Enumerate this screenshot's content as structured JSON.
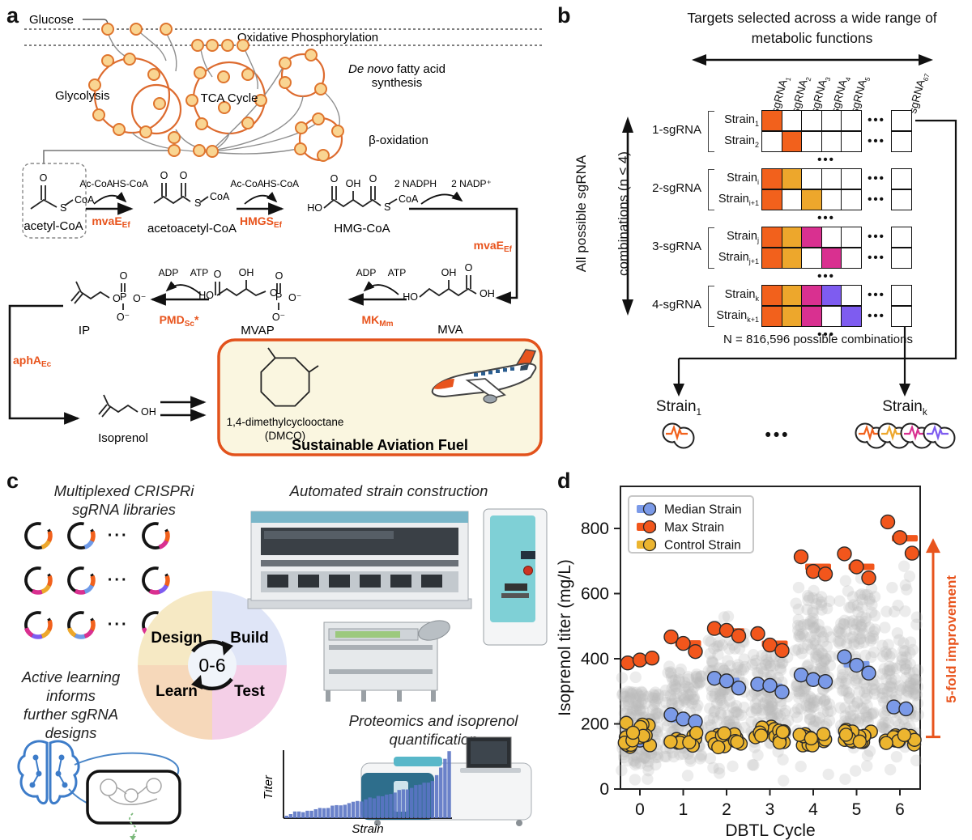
{
  "figure": {
    "panel_letters": {
      "a": "a",
      "b": "b",
      "c": "c",
      "d": "d"
    }
  },
  "colors": {
    "orange": "#f2611c",
    "gold": "#eda72c",
    "magenta": "#d93090",
    "purple": "#7e5cf0",
    "blue": "#6f9ae8",
    "median_blue": "#7b9ae8",
    "max_orange": "#f2561c",
    "control_gold": "#ecb52f",
    "grey_point": "#bcbcbc",
    "accent": "#e8541d"
  },
  "panel_a": {
    "network": {
      "glucose": "Glucose",
      "oxphos": "Oxidative Phosphorylation",
      "glycolysis": "Glycolysis",
      "tca": "TCA Cycle",
      "fatty1": "De novo",
      "fatty1b": "fatty acid",
      "fatty2": "synthesis",
      "beta": "β-oxidation"
    },
    "metabolites": {
      "acetyl": "acetyl-CoA",
      "acetoacetyl": "acetoacetyl-CoA",
      "hmg": "HMG-CoA",
      "mva": "MVA",
      "mvap": "MVAP",
      "ip": "IP",
      "isoprenol": "Isoprenol"
    },
    "enzymes": {
      "mvae1": {
        "base": "mvaE",
        "sub": "Ef"
      },
      "hmgs": {
        "base": "HMGS",
        "sub": "Ef"
      },
      "mvae2": {
        "base": "mvaE",
        "sub": "Ef"
      },
      "mk": {
        "base": "MK",
        "sub": "Mm"
      },
      "pmd": {
        "base": "PMD",
        "sub": "Sc",
        "suffix": "*"
      },
      "apha": {
        "base": "aphA",
        "sub": "Ec"
      }
    },
    "cofactors": {
      "accoa": "Ac-CoA",
      "hscoa": "HS-CoA",
      "adp": "ADP",
      "atp": "ATP",
      "nadph": "2 NADPH",
      "nadp": "2 NADP⁺"
    },
    "atoms": {
      "o": "O",
      "oh": "OH",
      "ho": "HO",
      "s": "S",
      "coa": "CoA",
      "p": "P",
      "ominus": "O⁻"
    },
    "saf": {
      "compound": "1,4-dimethylcyclooctane",
      "abbr": "(DMCO)",
      "title": "Sustainable Aviation Fuel"
    }
  },
  "panel_b": {
    "title1": "Targets selected across a wide range of",
    "title2": "metabolic functions",
    "col_headers": [
      {
        "base": "sgRNA",
        "sub": "1"
      },
      {
        "base": "sgRNA",
        "sub": "2"
      },
      {
        "base": "sgRNA",
        "sub": "3"
      },
      {
        "base": "sgRNA",
        "sub": "4"
      },
      {
        "base": "sgRNA",
        "sub": "5"
      },
      {
        "base": "sgRNA",
        "sub": "67"
      }
    ],
    "groups": [
      {
        "label": "1-sgRNA",
        "rows": [
          {
            "strain": {
              "base": "Strain",
              "sub": "1"
            },
            "cells": [
              "orange",
              "",
              "",
              "",
              ""
            ],
            "last": ""
          },
          {
            "strain": {
              "base": "Strain",
              "sub": "2"
            },
            "cells": [
              "",
              "orange",
              "",
              "",
              ""
            ],
            "last": ""
          }
        ]
      },
      {
        "label": "2-sgRNA",
        "rows": [
          {
            "strain": {
              "base": "Strain",
              "sub": "i"
            },
            "cells": [
              "orange",
              "gold",
              "",
              "",
              ""
            ],
            "last": ""
          },
          {
            "strain": {
              "base": "Strain",
              "sub": "i+1"
            },
            "cells": [
              "orange",
              "",
              "gold",
              "",
              ""
            ],
            "last": ""
          }
        ]
      },
      {
        "label": "3-sgRNA",
        "rows": [
          {
            "strain": {
              "base": "Strain",
              "sub": "j"
            },
            "cells": [
              "orange",
              "gold",
              "magenta",
              "",
              ""
            ],
            "last": ""
          },
          {
            "strain": {
              "base": "Strain",
              "sub": "j+1"
            },
            "cells": [
              "orange",
              "gold",
              "",
              "magenta",
              ""
            ],
            "last": ""
          }
        ]
      },
      {
        "label": "4-sgRNA",
        "rows": [
          {
            "strain": {
              "base": "Strain",
              "sub": "k"
            },
            "cells": [
              "orange",
              "gold",
              "magenta",
              "purple",
              ""
            ],
            "last": ""
          },
          {
            "strain": {
              "base": "Strain",
              "sub": "k+1"
            },
            "cells": [
              "orange",
              "gold",
              "magenta",
              "",
              "purple"
            ],
            "last": ""
          }
        ]
      }
    ],
    "dots": "•••",
    "left1": "All possible sgRNA",
    "left2": "combinations (n ≤ 4)",
    "note": "N = 816,596 possible combinations",
    "strain1": {
      "base": "Strain",
      "sub": "1"
    },
    "straink": {
      "base": "Strain",
      "sub": "k"
    },
    "strain1_colors": [
      "orange"
    ],
    "straink_colors": [
      "orange",
      "gold",
      "magenta",
      "purple"
    ]
  },
  "panel_c": {
    "lib1": "Multiplexed CRISPRi",
    "lib2": "sgRNA libraries",
    "auto": "Automated strain construction",
    "prot1": "Proteomics and isoprenol",
    "prot2": "quantification",
    "learn1": "Active learning",
    "learn2": "informs",
    "learn3": "further sgRNA",
    "learn4": "designs",
    "dbtl": {
      "design": "Design",
      "build": "Build",
      "test": "Test",
      "learn": "Learn",
      "center": "0-6"
    },
    "mini": {
      "ylabel": "Titer",
      "xlabel": "Strain",
      "bars": 40
    },
    "plasmid_rows": [
      [
        [
          "orange",
          "gold"
        ],
        [
          "orange",
          "blue"
        ],
        [
          "orange",
          "magenta"
        ]
      ],
      [
        [
          "orange",
          "gold",
          "magenta"
        ],
        [
          "orange",
          "blue",
          "magenta"
        ],
        [
          "orange",
          "purple",
          "magenta"
        ]
      ],
      [
        [
          "orange",
          "gold",
          "purple",
          "magenta"
        ],
        [
          "orange",
          "magenta",
          "blue",
          "gold"
        ],
        [
          "orange",
          "gold",
          "purple",
          "magenta"
        ]
      ]
    ],
    "pdots": "···"
  },
  "chart_data": {
    "type": "scatter",
    "title": "",
    "xlabel": "DBTL Cycle",
    "ylabel": "Isoprenol titer (mg/L)",
    "x_ticks": [
      "0",
      "1",
      "2",
      "3",
      "4",
      "5",
      "6"
    ],
    "y_ticks": [
      0,
      200,
      400,
      600,
      800
    ],
    "ylim": [
      0,
      915
    ],
    "grid": false,
    "legend_position": "top-left",
    "legend": [
      {
        "label": "Median Strain",
        "color_key": "median_blue"
      },
      {
        "label": "Max Strain",
        "color_key": "max_orange"
      },
      {
        "label": "Control Strain",
        "color_key": "control_gold"
      }
    ],
    "annotation": "5-fold improvement",
    "annotation_span": [
      160,
      760
    ],
    "cycles": [
      {
        "label": "0",
        "max_points": [
          387,
          396,
          402
        ],
        "max_bar": 394,
        "median_points": [
          150
        ],
        "median_bar": 146,
        "control": {
          "count": 18,
          "min": 125,
          "max": 205
        },
        "grey": {
          "count": 160,
          "min": 5,
          "max": 355,
          "dense_min": 70,
          "dense_max": 300
        }
      },
      {
        "label": "1",
        "max_points": [
          467,
          447,
          422
        ],
        "max_bar": 447,
        "median_points": [
          228,
          215,
          207
        ],
        "median_bar": 214,
        "control": {
          "count": 12,
          "min": 130,
          "max": 175
        },
        "grey": {
          "count": 120,
          "min": 20,
          "max": 405,
          "dense_min": 90,
          "dense_max": 360
        }
      },
      {
        "label": "2",
        "max_points": [
          493,
          487,
          470
        ],
        "max_bar": 484,
        "median_points": [
          340,
          332,
          310
        ],
        "median_bar": 332,
        "control": {
          "count": 13,
          "min": 120,
          "max": 178
        },
        "grey": {
          "count": 130,
          "min": 15,
          "max": 535,
          "dense_min": 140,
          "dense_max": 460
        }
      },
      {
        "label": "3",
        "max_points": [
          477,
          442,
          425
        ],
        "max_bar": 446,
        "median_points": [
          322,
          318,
          298
        ],
        "median_bar": 314,
        "control": {
          "count": 14,
          "min": 135,
          "max": 192
        },
        "grey": {
          "count": 120,
          "min": 25,
          "max": 460,
          "dense_min": 140,
          "dense_max": 410
        }
      },
      {
        "label": "4",
        "max_points": [
          713,
          668,
          660
        ],
        "max_bar": 682,
        "median_points": [
          350,
          336,
          330
        ],
        "median_bar": 340,
        "control": {
          "count": 13,
          "min": 132,
          "max": 172
        },
        "grey": {
          "count": 150,
          "min": 10,
          "max": 660,
          "dense_min": 180,
          "dense_max": 610
        }
      },
      {
        "label": "5",
        "max_points": [
          722,
          682,
          648
        ],
        "max_bar": 682,
        "median_points": [
          406,
          380,
          356
        ],
        "median_bar": 383,
        "control": {
          "count": 15,
          "min": 142,
          "max": 182
        },
        "grey": {
          "count": 150,
          "min": 10,
          "max": 660,
          "dense_min": 180,
          "dense_max": 600
        }
      },
      {
        "label": "6",
        "max_points": [
          820,
          772,
          724
        ],
        "max_bar": 770,
        "median_points": [
          252,
          246
        ],
        "median_bar": 249,
        "control": {
          "count": 14,
          "min": 132,
          "max": 172
        },
        "grey": {
          "count": 140,
          "min": 5,
          "max": 782,
          "dense_min": 140,
          "dense_max": 470
        }
      }
    ]
  }
}
